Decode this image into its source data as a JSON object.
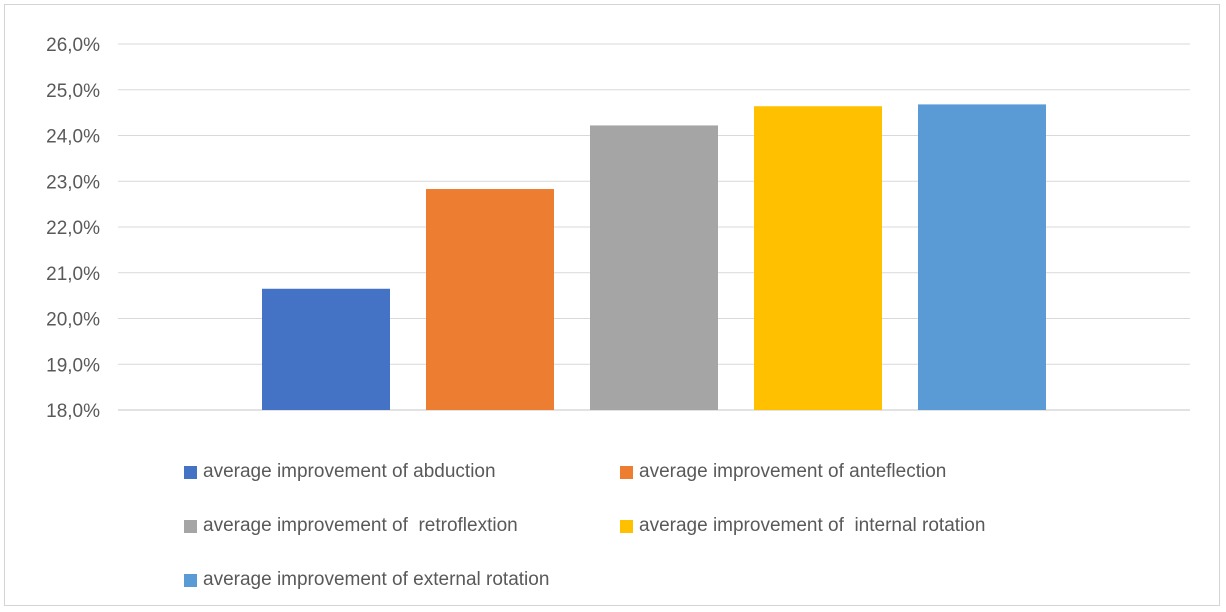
{
  "chart_data": {
    "type": "bar",
    "categories": [
      "average improvement of abduction",
      "average improvement of anteflection",
      "average improvement of  retroflextion",
      "average improvement of  internal rotation",
      "average improvement of external rotation"
    ],
    "values": [
      20.65,
      22.83,
      24.22,
      24.64,
      24.68
    ],
    "colors": [
      "#4472c4",
      "#ed7d31",
      "#a5a5a5",
      "#ffc000",
      "#5b9bd5"
    ],
    "ylim": [
      18.0,
      26.0
    ],
    "yticks": [
      "18,0%",
      "19,0%",
      "20,0%",
      "21,0%",
      "22,0%",
      "23,0%",
      "24,0%",
      "25,0%",
      "26,0%"
    ],
    "grid": true,
    "gridline_color": "#d9d9d9",
    "legend_position": "bottom",
    "title": "",
    "xlabel": "",
    "ylabel": ""
  }
}
